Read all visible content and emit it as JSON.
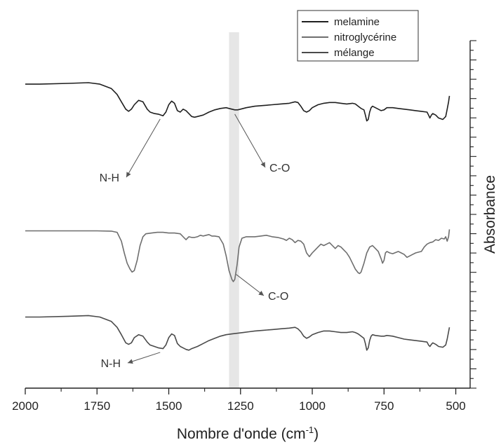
{
  "chart_data": {
    "type": "line",
    "xlabel": "Nombre d'onde (cm",
    "xlabel_sup": "-1",
    "xlabel_end": ")",
    "ylabel": "Absorbance",
    "xlim": [
      2000,
      450
    ],
    "x_ticks": [
      2000,
      1750,
      1500,
      1250,
      1000,
      750,
      500
    ],
    "y_ticks_shown": false,
    "y_axis_side": "right",
    "grid": false,
    "legend_position": "top-right",
    "highlight_band": [
      1290,
      1255
    ],
    "colors": {
      "melamine": "#1f1f1f",
      "nitroglycerine": "#6e6e6e",
      "melange": "#4a4a4a",
      "band": "#e6e6e6"
    },
    "series": [
      {
        "name": "melamine",
        "offset": 0,
        "points": [
          [
            2000,
            69
          ],
          [
            1950,
            69
          ],
          [
            1850,
            69.5
          ],
          [
            1780,
            70
          ],
          [
            1740,
            69
          ],
          [
            1700,
            66
          ],
          [
            1680,
            62
          ],
          [
            1665,
            57
          ],
          [
            1650,
            52
          ],
          [
            1640,
            50.5
          ],
          [
            1630,
            52
          ],
          [
            1620,
            55
          ],
          [
            1605,
            58
          ],
          [
            1590,
            57
          ],
          [
            1575,
            52
          ],
          [
            1565,
            50
          ],
          [
            1550,
            49
          ],
          [
            1535,
            48.5
          ],
          [
            1520,
            47.5
          ],
          [
            1510,
            50
          ],
          [
            1500,
            55
          ],
          [
            1490,
            57.5
          ],
          [
            1480,
            56
          ],
          [
            1470,
            51
          ],
          [
            1460,
            50
          ],
          [
            1450,
            52
          ],
          [
            1440,
            51
          ],
          [
            1430,
            49
          ],
          [
            1420,
            47
          ],
          [
            1410,
            46.5
          ],
          [
            1400,
            47
          ],
          [
            1380,
            48
          ],
          [
            1360,
            50
          ],
          [
            1340,
            51.5
          ],
          [
            1320,
            52.5
          ],
          [
            1300,
            53
          ],
          [
            1290,
            52.5
          ],
          [
            1280,
            52
          ],
          [
            1270,
            51.5
          ],
          [
            1260,
            51.5
          ],
          [
            1250,
            52
          ],
          [
            1230,
            53
          ],
          [
            1200,
            54
          ],
          [
            1170,
            54.5
          ],
          [
            1140,
            55
          ],
          [
            1110,
            55.5
          ],
          [
            1080,
            56
          ],
          [
            1060,
            57
          ],
          [
            1050,
            56.5
          ],
          [
            1040,
            54
          ],
          [
            1030,
            51
          ],
          [
            1020,
            50
          ],
          [
            1010,
            51
          ],
          [
            1000,
            53
          ],
          [
            980,
            55
          ],
          [
            960,
            56
          ],
          [
            940,
            56.5
          ],
          [
            920,
            56.5
          ],
          [
            900,
            56
          ],
          [
            880,
            55.5
          ],
          [
            860,
            56
          ],
          [
            850,
            55.5
          ],
          [
            840,
            54
          ],
          [
            830,
            52.5
          ],
          [
            820,
            51.5
          ],
          [
            815,
            48
          ],
          [
            810,
            44
          ],
          [
            805,
            45
          ],
          [
            800,
            50
          ],
          [
            795,
            53
          ],
          [
            790,
            54
          ],
          [
            780,
            53
          ],
          [
            770,
            52
          ],
          [
            760,
            51
          ],
          [
            750,
            51.5
          ],
          [
            740,
            53
          ],
          [
            720,
            53
          ],
          [
            700,
            52.5
          ],
          [
            680,
            52
          ],
          [
            660,
            51.5
          ],
          [
            640,
            51
          ],
          [
            620,
            50.5
          ],
          [
            600,
            50
          ],
          [
            595,
            48
          ],
          [
            590,
            46
          ],
          [
            585,
            48
          ],
          [
            580,
            49
          ],
          [
            570,
            48
          ],
          [
            560,
            46
          ],
          [
            545,
            45
          ],
          [
            535,
            47
          ],
          [
            530,
            52
          ],
          [
            525,
            57
          ],
          [
            522,
            61
          ]
        ]
      },
      {
        "name": "nitroglycérine",
        "offset": 0,
        "points": [
          [
            2000,
            35
          ],
          [
            1900,
            35
          ],
          [
            1800,
            35
          ],
          [
            1750,
            35
          ],
          [
            1700,
            34.8
          ],
          [
            1680,
            34
          ],
          [
            1665,
            28
          ],
          [
            1655,
            20
          ],
          [
            1645,
            13
          ],
          [
            1635,
            9
          ],
          [
            1628,
            7
          ],
          [
            1620,
            8
          ],
          [
            1610,
            15
          ],
          [
            1600,
            25
          ],
          [
            1590,
            31
          ],
          [
            1580,
            33
          ],
          [
            1560,
            33.5
          ],
          [
            1540,
            34
          ],
          [
            1520,
            34
          ],
          [
            1500,
            33.5
          ],
          [
            1480,
            33.5
          ],
          [
            1460,
            33
          ],
          [
            1445,
            30
          ],
          [
            1440,
            29
          ],
          [
            1430,
            31
          ],
          [
            1420,
            30.5
          ],
          [
            1410,
            30.5
          ],
          [
            1400,
            31
          ],
          [
            1390,
            32
          ],
          [
            1380,
            31.5
          ],
          [
            1370,
            32
          ],
          [
            1360,
            32.5
          ],
          [
            1350,
            31.5
          ],
          [
            1340,
            31.5
          ],
          [
            1325,
            31
          ],
          [
            1310,
            26
          ],
          [
            1300,
            18
          ],
          [
            1290,
            8
          ],
          [
            1280,
            2
          ],
          [
            1275,
            0.5
          ],
          [
            1270,
            2
          ],
          [
            1262,
            12
          ],
          [
            1255,
            24
          ],
          [
            1245,
            30
          ],
          [
            1230,
            31
          ],
          [
            1200,
            31
          ],
          [
            1180,
            31.5
          ],
          [
            1160,
            32
          ],
          [
            1140,
            31
          ],
          [
            1120,
            30.5
          ],
          [
            1100,
            29.5
          ],
          [
            1090,
            28.5
          ],
          [
            1080,
            30
          ],
          [
            1070,
            29
          ],
          [
            1060,
            27
          ],
          [
            1050,
            28.5
          ],
          [
            1040,
            28
          ],
          [
            1030,
            26
          ],
          [
            1020,
            20
          ],
          [
            1010,
            17.5
          ],
          [
            1000,
            20
          ],
          [
            990,
            22
          ],
          [
            980,
            24
          ],
          [
            970,
            26
          ],
          [
            960,
            25
          ],
          [
            950,
            26
          ],
          [
            940,
            27
          ],
          [
            930,
            25
          ],
          [
            920,
            23
          ],
          [
            910,
            25
          ],
          [
            900,
            24
          ],
          [
            890,
            22
          ],
          [
            880,
            20
          ],
          [
            870,
            17
          ],
          [
            860,
            13
          ],
          [
            850,
            9
          ],
          [
            840,
            6.5
          ],
          [
            835,
            6
          ],
          [
            830,
            7
          ],
          [
            820,
            13
          ],
          [
            810,
            20
          ],
          [
            800,
            24
          ],
          [
            790,
            25
          ],
          [
            780,
            23
          ],
          [
            770,
            21
          ],
          [
            760,
            16
          ],
          [
            755,
            13
          ],
          [
            750,
            15
          ],
          [
            745,
            20
          ],
          [
            740,
            21
          ],
          [
            730,
            20
          ],
          [
            720,
            19.5
          ],
          [
            700,
            21
          ],
          [
            690,
            20
          ],
          [
            680,
            19
          ],
          [
            670,
            17
          ],
          [
            660,
            18
          ],
          [
            650,
            19
          ],
          [
            640,
            20
          ],
          [
            630,
            20.5
          ],
          [
            620,
            21
          ],
          [
            610,
            24
          ],
          [
            600,
            26
          ],
          [
            590,
            27
          ],
          [
            580,
            27.5
          ],
          [
            570,
            29
          ],
          [
            560,
            28.5
          ],
          [
            550,
            30
          ],
          [
            540,
            29.5
          ],
          [
            535,
            31
          ],
          [
            530,
            28
          ],
          [
            525,
            31
          ],
          [
            522,
            36
          ]
        ]
      },
      {
        "name": "mélange",
        "offset": 0,
        "points": [
          [
            2000,
            25
          ],
          [
            1950,
            25
          ],
          [
            1850,
            25.5
          ],
          [
            1780,
            26
          ],
          [
            1740,
            25
          ],
          [
            1700,
            22
          ],
          [
            1680,
            18
          ],
          [
            1665,
            13
          ],
          [
            1650,
            7.5
          ],
          [
            1640,
            6.5
          ],
          [
            1630,
            7.5
          ],
          [
            1620,
            11
          ],
          [
            1605,
            13
          ],
          [
            1590,
            12
          ],
          [
            1575,
            8
          ],
          [
            1565,
            6
          ],
          [
            1550,
            5
          ],
          [
            1535,
            4
          ],
          [
            1520,
            3.5
          ],
          [
            1510,
            6
          ],
          [
            1500,
            11
          ],
          [
            1490,
            13.5
          ],
          [
            1480,
            12.5
          ],
          [
            1470,
            7
          ],
          [
            1460,
            5
          ],
          [
            1450,
            4
          ],
          [
            1440,
            3
          ],
          [
            1430,
            2.5
          ],
          [
            1420,
            3.5
          ],
          [
            1400,
            5
          ],
          [
            1380,
            7
          ],
          [
            1360,
            9
          ],
          [
            1340,
            10.5
          ],
          [
            1320,
            12
          ],
          [
            1300,
            13
          ],
          [
            1280,
            13.5
          ],
          [
            1260,
            14
          ],
          [
            1240,
            14.5
          ],
          [
            1220,
            15
          ],
          [
            1200,
            15.5
          ],
          [
            1170,
            16
          ],
          [
            1140,
            16.5
          ],
          [
            1110,
            17
          ],
          [
            1080,
            17.5
          ],
          [
            1060,
            18
          ],
          [
            1050,
            17
          ],
          [
            1040,
            15
          ],
          [
            1030,
            12
          ],
          [
            1020,
            10.5
          ],
          [
            1010,
            11.5
          ],
          [
            1000,
            13
          ],
          [
            980,
            14.5
          ],
          [
            960,
            15.5
          ],
          [
            940,
            15.5
          ],
          [
            920,
            15
          ],
          [
            900,
            14.5
          ],
          [
            880,
            14.5
          ],
          [
            860,
            15
          ],
          [
            850,
            14.5
          ],
          [
            840,
            13.5
          ],
          [
            830,
            12
          ],
          [
            820,
            10.5
          ],
          [
            815,
            7
          ],
          [
            810,
            2.5
          ],
          [
            805,
            4
          ],
          [
            800,
            9
          ],
          [
            795,
            12
          ],
          [
            790,
            13
          ],
          [
            780,
            12.5
          ],
          [
            760,
            12
          ],
          [
            750,
            12
          ],
          [
            740,
            12.5
          ],
          [
            720,
            12
          ],
          [
            700,
            11
          ],
          [
            680,
            10
          ],
          [
            660,
            9.5
          ],
          [
            640,
            9
          ],
          [
            620,
            8.5
          ],
          [
            600,
            8
          ],
          [
            595,
            6
          ],
          [
            590,
            5
          ],
          [
            585,
            6.5
          ],
          [
            580,
            7.5
          ],
          [
            570,
            6.5
          ],
          [
            560,
            5
          ],
          [
            545,
            4.5
          ],
          [
            535,
            6
          ],
          [
            530,
            10
          ],
          [
            525,
            15
          ],
          [
            522,
            18
          ]
        ]
      }
    ],
    "annotations": [
      {
        "text": "N-H",
        "series": "melamine",
        "x": 1530
      },
      {
        "text": "C-O",
        "series": "melamine",
        "x": 1270
      },
      {
        "text": "C-O",
        "series": "nitroglycérine",
        "x": 1265
      },
      {
        "text": "N-H",
        "series": "mélange",
        "x": 1530
      }
    ]
  }
}
